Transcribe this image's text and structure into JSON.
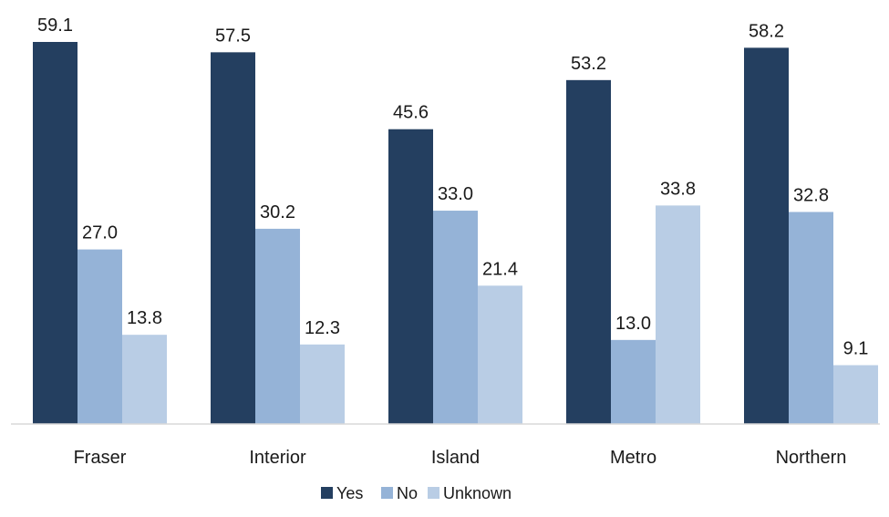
{
  "chart_data": {
    "type": "bar",
    "title": "",
    "xlabel": "",
    "ylabel": "",
    "categories": [
      "Fraser",
      "Interior",
      "Island",
      "Metro",
      "Northern"
    ],
    "series": [
      {
        "name": "Yes",
        "color": "#243F60",
        "values": [
          59.1,
          57.5,
          45.6,
          53.2,
          58.2
        ],
        "labels": [
          "59.1",
          "57.5",
          "45.6",
          "53.2",
          "58.2"
        ]
      },
      {
        "name": "No",
        "color": "#95B3D7",
        "values": [
          27.0,
          30.2,
          33.0,
          13.0,
          32.8
        ],
        "labels": [
          "27.0",
          "30.2",
          "33.0",
          "13.0",
          "32.8"
        ]
      },
      {
        "name": "Unknown",
        "color": "#B9CDE5",
        "values": [
          13.8,
          12.3,
          21.4,
          33.8,
          9.1
        ],
        "labels": [
          "13.8",
          "12.3",
          "21.4",
          "33.8",
          "9.1"
        ]
      }
    ],
    "ylim": [
      0,
      59.1
    ],
    "grid": false,
    "legend": "bottom-center",
    "axis_color": "#D9D9D9"
  }
}
